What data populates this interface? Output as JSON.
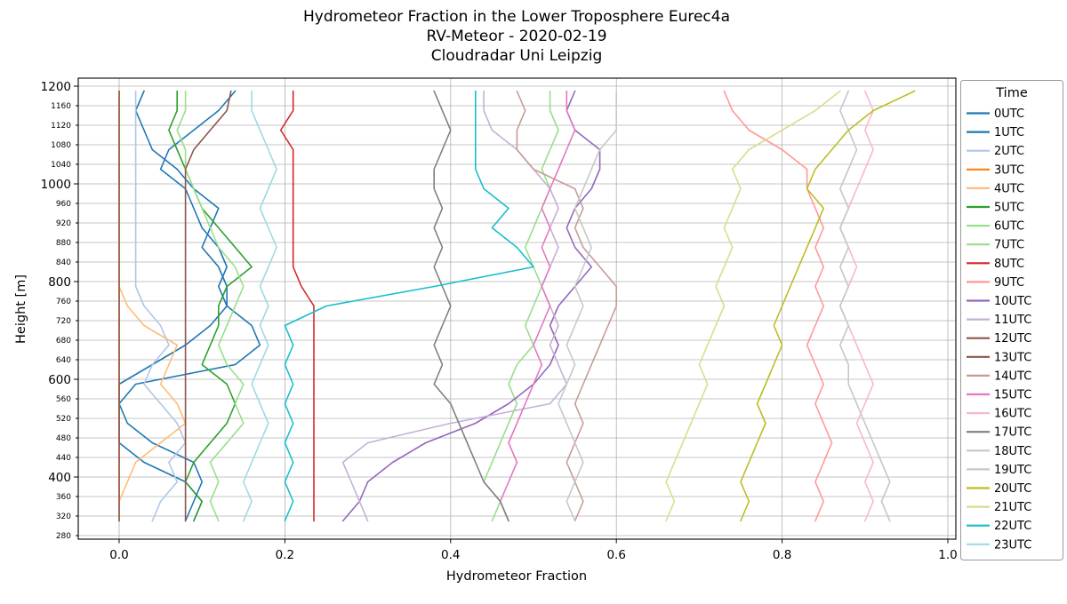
{
  "chart_data": {
    "type": "line",
    "title_lines": [
      "Hydrometeor Fraction in the Lower Troposphere Eurec4a",
      "RV-Meteor - 2020-02-19",
      "Cloudradar Uni Leipzig"
    ],
    "xlabel": "Hydrometeor Fraction",
    "ylabel": "Height [m]",
    "xlim": [
      0.0,
      1.0
    ],
    "ylim": [
      280,
      1200
    ],
    "grid": true,
    "legend_title": "Time",
    "legend_position": "right",
    "x_ticks": [
      0.0,
      0.2,
      0.4,
      0.6,
      0.8,
      1.0
    ],
    "x_tick_labels": [
      "0.0",
      "0.2",
      "0.4",
      "0.6",
      "0.8",
      "1.0"
    ],
    "y_ticks": [
      280,
      320,
      360,
      400,
      440,
      480,
      520,
      560,
      600,
      640,
      680,
      720,
      760,
      800,
      840,
      880,
      920,
      960,
      1000,
      1040,
      1080,
      1120,
      1160,
      1200
    ],
    "heights_m": [
      310,
      350,
      390,
      430,
      470,
      510,
      550,
      590,
      630,
      670,
      710,
      750,
      790,
      830,
      870,
      910,
      950,
      990,
      1030,
      1070,
      1110,
      1150,
      1190
    ],
    "series": [
      {
        "name": "0UTC",
        "color": "#1f77b4",
        "values": [
          0.09,
          0.1,
          0.08,
          0.03,
          0.0,
          0.0,
          0.0,
          0.02,
          0.14,
          0.17,
          0.16,
          0.13,
          0.12,
          0.13,
          0.12,
          0.1,
          0.09,
          0.08,
          0.05,
          0.06,
          0.09,
          0.12,
          0.14
        ]
      },
      {
        "name": "1UTC",
        "color": "#1f77b4",
        "values": [
          0.08,
          0.09,
          0.1,
          0.09,
          0.04,
          0.01,
          0.0,
          0.0,
          0.04,
          0.08,
          0.11,
          0.13,
          0.13,
          0.12,
          0.1,
          0.11,
          0.12,
          0.09,
          0.07,
          0.04,
          0.03,
          0.02,
          0.03
        ]
      },
      {
        "name": "2UTC",
        "color": "#aec7e8",
        "values": [
          0.04,
          0.05,
          0.07,
          0.06,
          0.08,
          0.07,
          0.05,
          0.03,
          0.04,
          0.06,
          0.05,
          0.03,
          0.02,
          0.02,
          0.02,
          0.02,
          0.02,
          0.02,
          0.02,
          0.02,
          0.02,
          0.02,
          0.02
        ]
      },
      {
        "name": "3UTC",
        "color": "#ff7f0e",
        "values": [
          0,
          0,
          0,
          0,
          0,
          0,
          0,
          0,
          0,
          0,
          0,
          0,
          0,
          0,
          0,
          0,
          0,
          0,
          0,
          0,
          0,
          0,
          0
        ]
      },
      {
        "name": "4UTC",
        "color": "#ffbb78",
        "values": [
          0.0,
          0.0,
          0.01,
          0.02,
          0.05,
          0.08,
          0.07,
          0.05,
          0.06,
          0.07,
          0.03,
          0.01,
          0.0,
          0.0,
          0.0,
          0.0,
          0.0,
          0.0,
          0.0,
          0.0,
          0.0,
          0.0,
          0.0
        ]
      },
      {
        "name": "5UTC",
        "color": "#2ca02c",
        "values": [
          0.09,
          0.1,
          0.08,
          0.09,
          0.11,
          0.13,
          0.14,
          0.13,
          0.1,
          0.11,
          0.12,
          0.12,
          0.13,
          0.16,
          0.14,
          0.12,
          0.1,
          0.09,
          0.08,
          0.07,
          0.06,
          0.07,
          0.07
        ]
      },
      {
        "name": "6UTC",
        "color": "#98df8a",
        "values": [
          0.12,
          0.11,
          0.12,
          0.11,
          0.13,
          0.15,
          0.14,
          0.15,
          0.13,
          0.12,
          0.13,
          0.14,
          0.15,
          0.14,
          0.12,
          0.11,
          0.1,
          0.09,
          0.08,
          0.08,
          0.07,
          0.08,
          0.08
        ]
      },
      {
        "name": "7UTC",
        "color": "#98df8a",
        "values": [
          0.45,
          0.46,
          0.44,
          0.45,
          0.46,
          0.47,
          0.48,
          0.47,
          0.48,
          0.5,
          0.49,
          0.5,
          0.51,
          0.5,
          0.49,
          0.5,
          0.51,
          0.52,
          0.51,
          0.52,
          0.53,
          0.52,
          0.52
        ]
      },
      {
        "name": "8UTC",
        "color": "#d62728",
        "values": [
          0.235,
          0.235,
          0.235,
          0.235,
          0.235,
          0.235,
          0.235,
          0.235,
          0.235,
          0.235,
          0.235,
          0.235,
          0.22,
          0.21,
          0.21,
          0.21,
          0.21,
          0.21,
          0.21,
          0.21,
          0.195,
          0.21,
          0.21
        ]
      },
      {
        "name": "9UTC",
        "color": "#ff9896",
        "values": [
          0.84,
          0.85,
          0.84,
          0.85,
          0.86,
          0.85,
          0.84,
          0.85,
          0.84,
          0.83,
          0.84,
          0.85,
          0.84,
          0.85,
          0.84,
          0.85,
          0.84,
          0.83,
          0.83,
          0.8,
          0.76,
          0.74,
          0.73
        ]
      },
      {
        "name": "10UTC",
        "color": "#9467bd",
        "values": [
          0.27,
          0.29,
          0.3,
          0.33,
          0.37,
          0.43,
          0.47,
          0.5,
          0.52,
          0.53,
          0.52,
          0.53,
          0.55,
          0.57,
          0.55,
          0.54,
          0.55,
          0.57,
          0.58,
          0.58,
          0.55,
          0.54,
          0.55
        ]
      },
      {
        "name": "11UTC",
        "color": "#c5b0d5",
        "values": [
          0.3,
          0.29,
          0.28,
          0.27,
          0.3,
          0.4,
          0.52,
          0.54,
          0.53,
          0.52,
          0.53,
          0.52,
          0.51,
          0.52,
          0.53,
          0.52,
          0.53,
          0.52,
          0.5,
          0.48,
          0.45,
          0.44,
          0.44
        ]
      },
      {
        "name": "12UTC",
        "color": "#8c564b",
        "values": [
          0.08,
          0.08,
          0.08,
          0.08,
          0.08,
          0.08,
          0.08,
          0.08,
          0.08,
          0.08,
          0.08,
          0.08,
          0.08,
          0.08,
          0.08,
          0.08,
          0.08,
          0.08,
          0.08,
          0.09,
          0.11,
          0.13,
          0.135
        ]
      },
      {
        "name": "13UTC",
        "color": "#8c564b",
        "values": [
          0,
          0,
          0,
          0,
          0,
          0,
          0,
          0,
          0,
          0,
          0,
          0,
          0,
          0,
          0,
          0,
          0,
          0,
          0,
          0,
          0,
          0,
          0
        ]
      },
      {
        "name": "14UTC",
        "color": "#c49c94",
        "values": [
          0.55,
          0.56,
          0.55,
          0.54,
          0.55,
          0.56,
          0.55,
          0.56,
          0.57,
          0.58,
          0.59,
          0.6,
          0.6,
          0.58,
          0.56,
          0.55,
          0.56,
          0.55,
          0.5,
          0.48,
          0.48,
          0.49,
          0.48
        ]
      },
      {
        "name": "15UTC",
        "color": "#e377c2",
        "values": [
          0.47,
          0.46,
          0.47,
          0.48,
          0.47,
          0.48,
          0.49,
          0.5,
          0.51,
          0.5,
          0.51,
          0.52,
          0.51,
          0.52,
          0.51,
          0.52,
          0.51,
          0.52,
          0.53,
          0.54,
          0.55,
          0.54,
          0.54
        ]
      },
      {
        "name": "16UTC",
        "color": "#f7b6d2",
        "values": [
          0.9,
          0.91,
          0.9,
          0.91,
          0.9,
          0.89,
          0.9,
          0.91,
          0.9,
          0.89,
          0.88,
          0.87,
          0.88,
          0.89,
          0.88,
          0.87,
          0.88,
          0.89,
          0.9,
          0.91,
          0.9,
          0.91,
          0.9
        ]
      },
      {
        "name": "17UTC",
        "color": "#7f7f7f",
        "values": [
          0.47,
          0.46,
          0.44,
          0.43,
          0.42,
          0.41,
          0.4,
          0.38,
          0.39,
          0.38,
          0.39,
          0.4,
          0.39,
          0.38,
          0.39,
          0.38,
          0.39,
          0.38,
          0.38,
          0.39,
          0.4,
          0.39,
          0.38
        ]
      },
      {
        "name": "18UTC",
        "color": "#c7c7c7",
        "values": [
          0.55,
          0.54,
          0.55,
          0.56,
          0.55,
          0.54,
          0.53,
          0.54,
          0.55,
          0.54,
          0.55,
          0.56,
          0.55,
          0.56,
          0.57,
          0.56,
          0.55,
          0.56,
          0.57,
          0.58,
          0.6,
          0.6,
          0.6
        ]
      },
      {
        "name": "19UTC",
        "color": "#c7c7c7",
        "values": [
          0.93,
          0.92,
          0.93,
          0.92,
          0.91,
          0.9,
          0.89,
          0.88,
          0.88,
          0.87,
          0.88,
          0.87,
          0.88,
          0.87,
          0.88,
          0.87,
          0.88,
          0.87,
          0.88,
          0.89,
          0.88,
          0.87,
          0.88
        ]
      },
      {
        "name": "20UTC",
        "color": "#bcbd22",
        "values": [
          0.75,
          0.76,
          0.75,
          0.76,
          0.77,
          0.78,
          0.77,
          0.78,
          0.79,
          0.8,
          0.79,
          0.8,
          0.81,
          0.82,
          0.83,
          0.84,
          0.85,
          0.83,
          0.84,
          0.86,
          0.88,
          0.91,
          0.96
        ]
      },
      {
        "name": "21UTC",
        "color": "#dbdb8d",
        "values": [
          0.66,
          0.67,
          0.66,
          0.67,
          0.68,
          0.69,
          0.7,
          0.71,
          0.7,
          0.71,
          0.72,
          0.73,
          0.72,
          0.73,
          0.74,
          0.73,
          0.74,
          0.75,
          0.74,
          0.76,
          0.8,
          0.84,
          0.87
        ]
      },
      {
        "name": "22UTC",
        "color": "#17becf",
        "values": [
          0.2,
          0.21,
          0.2,
          0.21,
          0.2,
          0.21,
          0.2,
          0.21,
          0.2,
          0.21,
          0.2,
          0.25,
          0.38,
          0.5,
          0.48,
          0.45,
          0.47,
          0.44,
          0.43,
          0.43,
          0.43,
          0.43,
          0.43
        ]
      },
      {
        "name": "23UTC",
        "color": "#9edae5",
        "values": [
          0.15,
          0.16,
          0.15,
          0.16,
          0.17,
          0.18,
          0.17,
          0.16,
          0.17,
          0.18,
          0.17,
          0.18,
          0.17,
          0.18,
          0.19,
          0.18,
          0.17,
          0.18,
          0.19,
          0.18,
          0.17,
          0.16,
          0.16
        ]
      }
    ],
    "style": {
      "grid_color": "#b0b0b0",
      "spine_color": "#000000",
      "background": "#ffffff"
    }
  }
}
